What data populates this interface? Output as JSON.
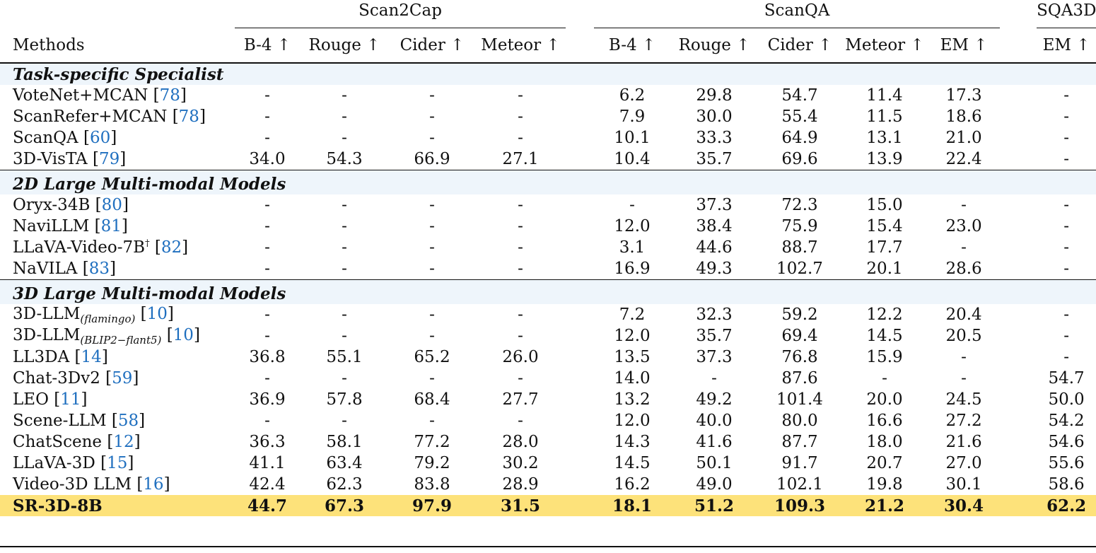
{
  "groups": {
    "scan2cap": "Scan2Cap",
    "scanqa": "ScanQA",
    "sqa3d": "SQA3D"
  },
  "headers": {
    "methods": "Methods",
    "s2c": [
      "B-4 ↑",
      "Rouge ↑",
      "Cider ↑",
      "Meteor ↑"
    ],
    "sqa": [
      "B-4 ↑",
      "Rouge ↑",
      "Cider ↑",
      "Meteor ↑",
      "EM ↑"
    ],
    "sqa3d": "EM ↑"
  },
  "sections": [
    {
      "title": "Task-specific Specialist",
      "rows": [
        {
          "name": "VoteNet+MCAN ",
          "cite": "78",
          "values": [
            "-",
            "-",
            "-",
            "-",
            "6.2",
            "29.8",
            "54.7",
            "11.4",
            "17.3",
            "-"
          ]
        },
        {
          "name": "ScanRefer+MCAN ",
          "cite": "78",
          "values": [
            "-",
            "-",
            "-",
            "-",
            "7.9",
            "30.0",
            "55.4",
            "11.5",
            "18.6",
            "-"
          ]
        },
        {
          "name": "ScanQA ",
          "cite": "60",
          "values": [
            "-",
            "-",
            "-",
            "-",
            "10.1",
            "33.3",
            "64.9",
            "13.1",
            "21.0",
            "-"
          ]
        },
        {
          "name": "3D-VisTA ",
          "cite": "79",
          "values": [
            "34.0",
            "54.3",
            "66.9",
            "27.1",
            "10.4",
            "35.7",
            "69.6",
            "13.9",
            "22.4",
            "-"
          ]
        }
      ]
    },
    {
      "title": "2D Large Multi-modal Models",
      "rows": [
        {
          "name": "Oryx-34B ",
          "cite": "80",
          "values": [
            "-",
            "-",
            "-",
            "-",
            "-",
            "37.3",
            "72.3",
            "15.0",
            "-",
            "-"
          ]
        },
        {
          "name": "NaviLLM ",
          "cite": "81",
          "values": [
            "-",
            "-",
            "-",
            "-",
            "12.0",
            "38.4",
            "75.9",
            "15.4",
            "23.0",
            "-"
          ]
        },
        {
          "name": "LLaVA-Video-7B",
          "sup": "†",
          "cite": "82",
          "values": [
            "-",
            "-",
            "-",
            "-",
            "3.1",
            "44.6",
            "88.7",
            "17.7",
            "-",
            "-"
          ]
        },
        {
          "name": "NaVILA ",
          "cite": "83",
          "values": [
            "-",
            "-",
            "-",
            "-",
            "16.9",
            "49.3",
            "102.7",
            "20.1",
            "28.6",
            "-"
          ]
        }
      ]
    },
    {
      "title": "3D Large Multi-modal Models",
      "rows": [
        {
          "name": "3D-LLM",
          "sub": "(flamingo)",
          "cite": "10",
          "values": [
            "-",
            "-",
            "-",
            "-",
            "7.2",
            "32.3",
            "59.2",
            "12.2",
            "20.4",
            "-"
          ]
        },
        {
          "name": "3D-LLM",
          "sub": "(BLIP2−flant5)",
          "cite": "10",
          "values": [
            "-",
            "-",
            "-",
            "-",
            "12.0",
            "35.7",
            "69.4",
            "14.5",
            "20.5",
            "-"
          ]
        },
        {
          "name": "LL3DA ",
          "cite": "14",
          "values": [
            "36.8",
            "55.1",
            "65.2",
            "26.0",
            "13.5",
            "37.3",
            "76.8",
            "15.9",
            "-",
            "-"
          ]
        },
        {
          "name": "Chat-3Dv2 ",
          "cite": "59",
          "values": [
            "-",
            "-",
            "-",
            "-",
            "14.0",
            "-",
            "87.6",
            "-",
            "-",
            "54.7"
          ]
        },
        {
          "name": "LEO ",
          "cite": "11",
          "values": [
            "36.9",
            "57.8",
            "68.4",
            "27.7",
            "13.2",
            "49.2",
            "101.4",
            "20.0",
            "24.5",
            "50.0"
          ]
        },
        {
          "name": "Scene-LLM ",
          "cite": "58",
          "values": [
            "-",
            "-",
            "-",
            "-",
            "12.0",
            "40.0",
            "80.0",
            "16.6",
            "27.2",
            "54.2"
          ]
        },
        {
          "name": "ChatScene ",
          "cite": "12",
          "values": [
            "36.3",
            "58.1",
            "77.2",
            "28.0",
            "14.3",
            "41.6",
            "87.7",
            "18.0",
            "21.6",
            "54.6"
          ]
        },
        {
          "name": "LLaVA-3D ",
          "cite": "15",
          "values": [
            "41.1",
            "63.4",
            "79.2",
            "30.2",
            "14.5",
            "50.1",
            "91.7",
            "20.7",
            "27.0",
            "55.6"
          ]
        },
        {
          "name": "Video-3D LLM ",
          "cite": "16",
          "values": [
            "42.4",
            "62.3",
            "83.8",
            "28.9",
            "16.2",
            "49.0",
            "102.1",
            "19.8",
            "30.1",
            "58.6"
          ]
        },
        {
          "name": "SR-3D-8B",
          "highlight": true,
          "values": [
            "44.7",
            "67.3",
            "97.9",
            "31.5",
            "18.1",
            "51.2",
            "109.3",
            "21.2",
            "30.4",
            "62.2"
          ]
        }
      ]
    }
  ],
  "colors": {
    "highlight": "#fde27a",
    "section_bg": "#eef5fb",
    "cite": "#1f6fbf"
  }
}
